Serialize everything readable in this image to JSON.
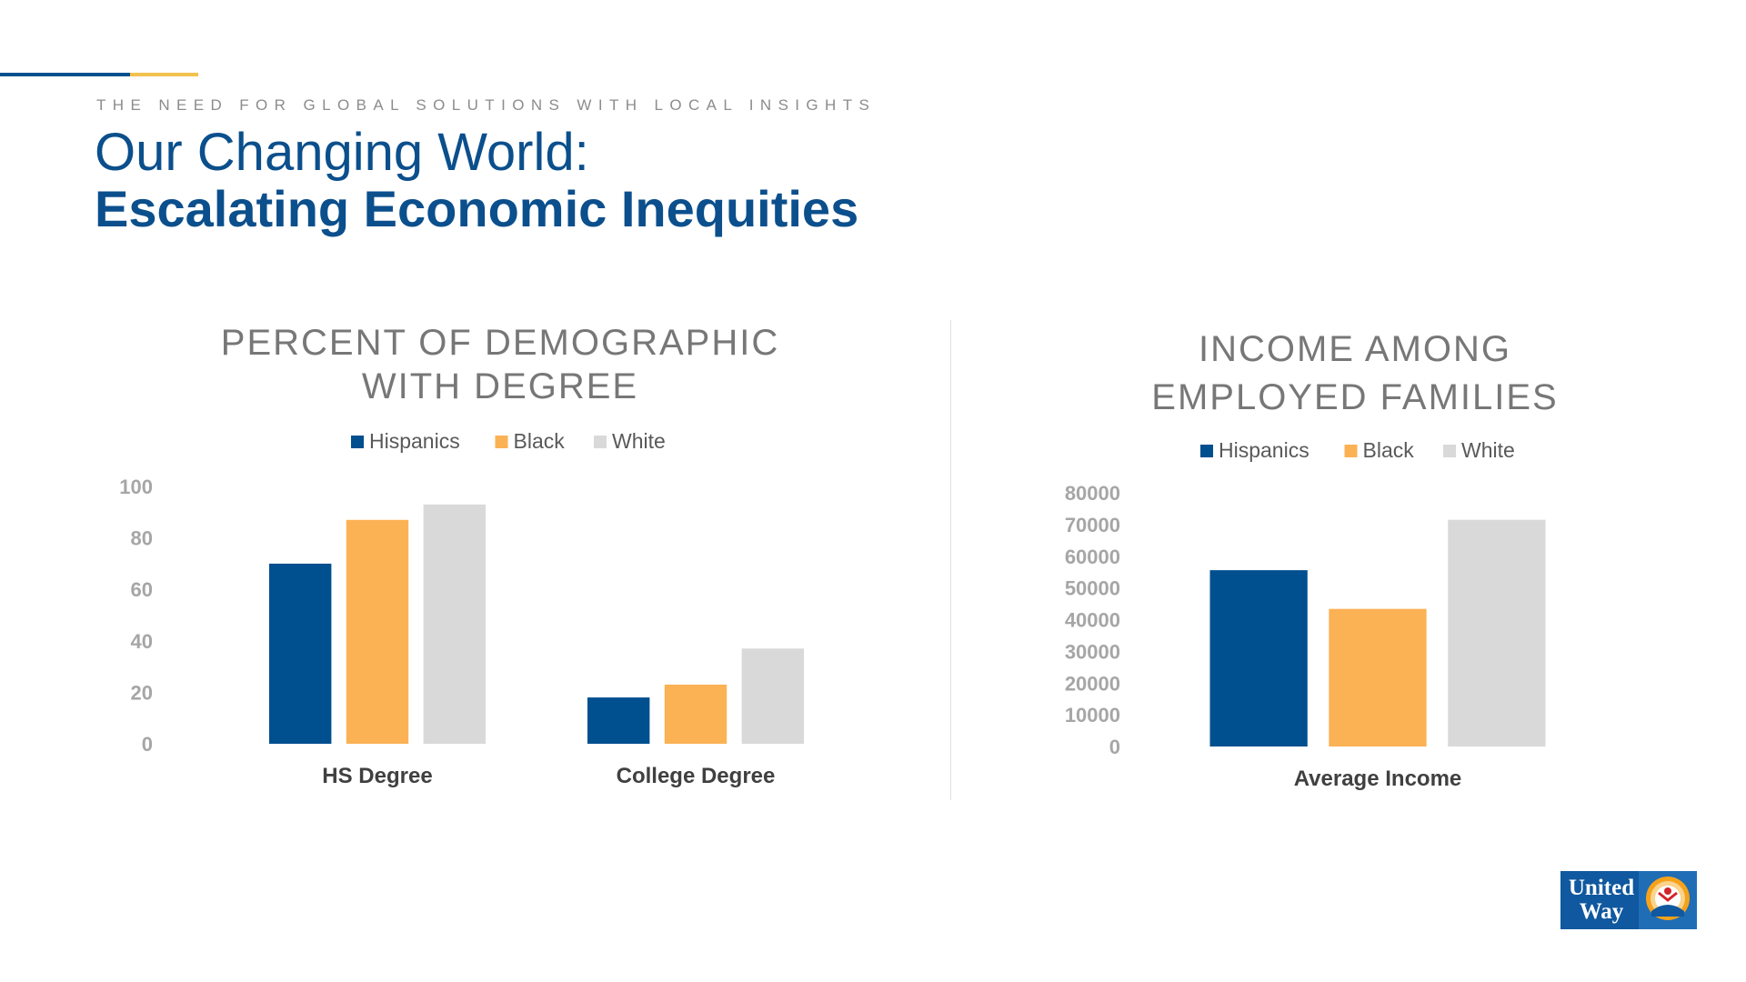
{
  "header": {
    "kicker": "THE NEED FOR GLOBAL SOLUTIONS WITH LOCAL INSIGHTS",
    "title_line1": "Our Changing World:",
    "title_line2": "Escalating Economic Inequities"
  },
  "colors": {
    "Hispanics": "#004f8f",
    "Black": "#fbb254",
    "White": "#d9d9d9",
    "title_blue": "#0b4f8c",
    "axis_text": "#a6a6a6"
  },
  "logo": {
    "line1": "United",
    "line2": "Way"
  },
  "chart_data": [
    {
      "type": "bar",
      "title_lines": [
        "PERCENT OF DEMOGRAPHIC",
        "WITH DEGREE"
      ],
      "categories": [
        "HS Degree",
        "College Degree"
      ],
      "series": [
        {
          "name": "Hispanics",
          "values": [
            70,
            18
          ]
        },
        {
          "name": "Black",
          "values": [
            87,
            23
          ]
        },
        {
          "name": "White",
          "values": [
            93,
            37
          ]
        }
      ],
      "ylim": [
        0,
        100
      ],
      "yticks": [
        0,
        20,
        40,
        60,
        80,
        100
      ],
      "grid": false,
      "legend": "top"
    },
    {
      "type": "bar",
      "title_lines": [
        "INCOME AMONG",
        "EMPLOYED FAMILIES"
      ],
      "categories": [
        "Average Income"
      ],
      "series": [
        {
          "name": "Hispanics",
          "values": [
            55600
          ]
        },
        {
          "name": "Black",
          "values": [
            43400
          ]
        },
        {
          "name": "White",
          "values": [
            71500
          ]
        }
      ],
      "ylim": [
        0,
        80000
      ],
      "yticks": [
        0,
        10000,
        20000,
        30000,
        40000,
        50000,
        60000,
        70000,
        80000
      ],
      "grid": false,
      "legend": "top"
    }
  ]
}
